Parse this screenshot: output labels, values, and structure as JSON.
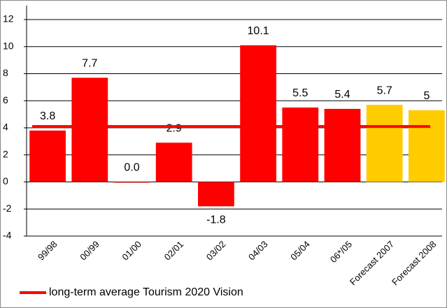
{
  "chart_data": {
    "type": "bar",
    "categories": [
      "99/98",
      "00/99",
      "01/00",
      "02/01",
      "03/02",
      "04/03",
      "05/04",
      "06*/05",
      "Forecast 2007",
      "Forecast 2008"
    ],
    "values": [
      3.8,
      7.7,
      0,
      2.9,
      -1.8,
      10.1,
      5.5,
      5.4,
      5.7,
      5.3
    ],
    "value_labels": [
      "3.8",
      "7.7",
      "0.0",
      "2.9",
      "-1.8",
      "10.1",
      "5.5",
      "5.4",
      "5.7",
      "5"
    ],
    "colors": [
      "#ff0000",
      "#ff0000",
      "#ff0000",
      "#ff0000",
      "#ff0000",
      "#ff0000",
      "#ff0000",
      "#ff0000",
      "#ffcc00",
      "#ffcc00"
    ],
    "average_line": {
      "name": "long-term average Tourism 2020 Vision",
      "value": 4.1,
      "color": "#ff0000"
    },
    "ylim": [
      -4,
      12
    ],
    "yticks": [
      -4,
      -2,
      0,
      2,
      4,
      6,
      8,
      10,
      12
    ],
    "grid": true,
    "legend": "bottom-left"
  }
}
